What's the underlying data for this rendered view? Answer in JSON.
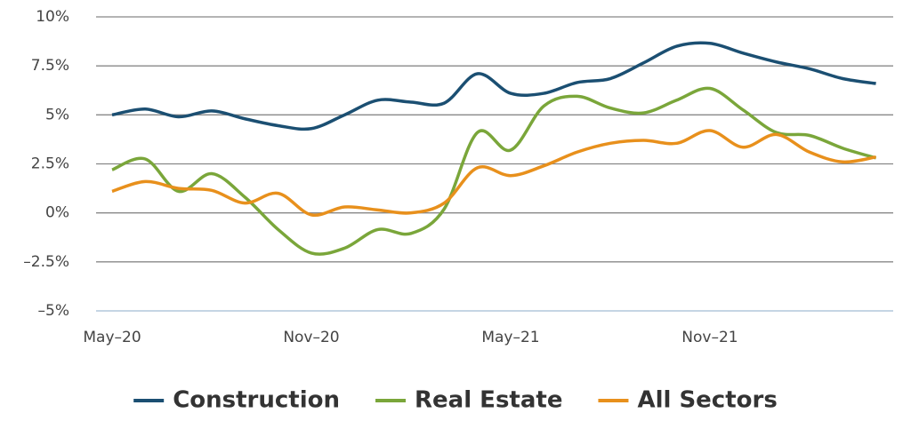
{
  "chart_data": {
    "type": "line",
    "categories": [
      "May–20",
      null,
      null,
      null,
      null,
      null,
      "Nov–20",
      null,
      null,
      null,
      null,
      null,
      "May–21",
      null,
      null,
      null,
      null,
      null,
      "Nov–21",
      null,
      null,
      null,
      null,
      null
    ],
    "series": [
      {
        "name": "Construction",
        "color": "#1b4f72",
        "values": [
          5.0,
          5.3,
          4.9,
          5.2,
          4.8,
          4.45,
          4.3,
          5.0,
          5.75,
          5.65,
          5.6,
          7.1,
          6.1,
          6.1,
          6.65,
          6.85,
          7.65,
          8.5,
          8.65,
          8.15,
          7.7,
          7.35,
          6.85,
          6.6
        ]
      },
      {
        "name": "Real Estate",
        "color": "#7aa63a",
        "values": [
          2.2,
          2.75,
          1.1,
          2.0,
          0.8,
          -0.85,
          -2.05,
          -1.8,
          -0.85,
          -1.05,
          0.2,
          4.1,
          3.2,
          5.45,
          5.95,
          5.35,
          5.1,
          5.75,
          6.35,
          5.25,
          4.1,
          3.95,
          3.3,
          2.8
        ]
      },
      {
        "name": "All Sectors",
        "color": "#e8901c",
        "values": [
          1.1,
          1.6,
          1.25,
          1.15,
          0.5,
          1.0,
          -0.1,
          0.3,
          0.15,
          0.0,
          0.5,
          2.3,
          1.9,
          2.4,
          3.1,
          3.55,
          3.7,
          3.55,
          4.2,
          3.35,
          4.0,
          3.1,
          2.6,
          2.85
        ]
      }
    ],
    "ylim": [
      -5,
      10
    ],
    "yticks": [
      {
        "value": 10,
        "label": "10%"
      },
      {
        "value": 7.5,
        "label": "7.5%"
      },
      {
        "value": 5,
        "label": "5%"
      },
      {
        "value": 2.5,
        "label": "2.5%"
      },
      {
        "value": 0,
        "label": "0%"
      },
      {
        "value": -2.5,
        "label": "–2.5%"
      },
      {
        "value": -5,
        "label": "–5%"
      }
    ],
    "grid": true
  }
}
